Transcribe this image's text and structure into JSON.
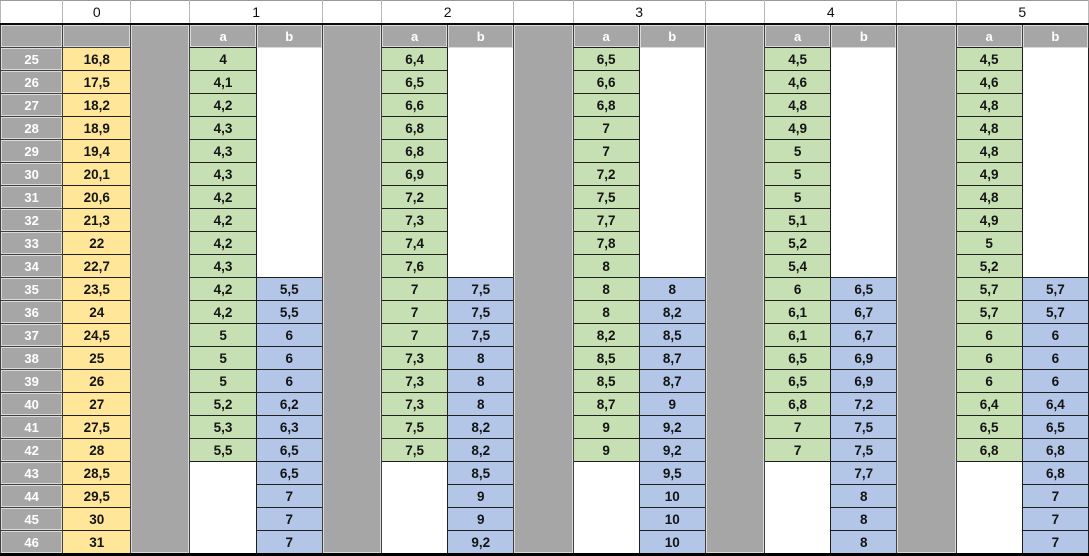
{
  "table": {
    "col0_header": "0",
    "group_labels": [
      "1",
      "2",
      "3",
      "4",
      "5"
    ],
    "sub_headers": [
      "a",
      "b"
    ],
    "row_numbers": [
      "25",
      "26",
      "27",
      "28",
      "29",
      "30",
      "31",
      "32",
      "33",
      "34",
      "35",
      "36",
      "37",
      "38",
      "39",
      "40",
      "41",
      "42",
      "43",
      "44",
      "45",
      "46"
    ],
    "col0": [
      "16,8",
      "17,5",
      "18,2",
      "18,9",
      "19,4",
      "20,1",
      "20,6",
      "21,3",
      "22",
      "22,7",
      "23,5",
      "24",
      "24,5",
      "25",
      "26",
      "27",
      "27,5",
      "28",
      "28,5",
      "29,5",
      "30",
      "31"
    ],
    "groups": [
      {
        "label": "1",
        "a": [
          "4",
          "4,1",
          "4,2",
          "4,3",
          "4,3",
          "4,3",
          "4,2",
          "4,2",
          "4,2",
          "4,3",
          "4,2",
          "4,2",
          "5",
          "5",
          "5",
          "5,2",
          "5,3",
          "5,5",
          "",
          "",
          "",
          ""
        ],
        "b": [
          "",
          "",
          "",
          "",
          "",
          "",
          "",
          "",
          "",
          "",
          "5,5",
          "5,5",
          "6",
          "6",
          "6",
          "6,2",
          "6,3",
          "6,5",
          "6,5",
          "7",
          "7",
          "7"
        ]
      },
      {
        "label": "2",
        "a": [
          "6,4",
          "6,5",
          "6,6",
          "6,8",
          "6,8",
          "6,9",
          "7,2",
          "7,3",
          "7,4",
          "7,6",
          "7",
          "7",
          "7",
          "7,3",
          "7,3",
          "7,3",
          "7,5",
          "7,5",
          "",
          "",
          "",
          ""
        ],
        "b": [
          "",
          "",
          "",
          "",
          "",
          "",
          "",
          "",
          "",
          "",
          "7,5",
          "7,5",
          "7,5",
          "8",
          "8",
          "8",
          "8,2",
          "8,2",
          "8,5",
          "9",
          "9",
          "9,2"
        ]
      },
      {
        "label": "3",
        "a": [
          "6,5",
          "6,6",
          "6,8",
          "7",
          "7",
          "7,2",
          "7,5",
          "7,7",
          "7,8",
          "8",
          "8",
          "8",
          "8,2",
          "8,5",
          "8,5",
          "8,7",
          "9",
          "9",
          "",
          "",
          "",
          ""
        ],
        "b": [
          "",
          "",
          "",
          "",
          "",
          "",
          "",
          "",
          "",
          "",
          "8",
          "8,2",
          "8,5",
          "8,7",
          "8,7",
          "9",
          "9,2",
          "9,2",
          "9,5",
          "10",
          "10",
          "10"
        ]
      },
      {
        "label": "4",
        "a": [
          "4,5",
          "4,6",
          "4,8",
          "4,9",
          "5",
          "5",
          "5",
          "5,1",
          "5,2",
          "5,4",
          "6",
          "6,1",
          "6,1",
          "6,5",
          "6,5",
          "6,8",
          "7",
          "7",
          "",
          "",
          "",
          ""
        ],
        "b": [
          "",
          "",
          "",
          "",
          "",
          "",
          "",
          "",
          "",
          "",
          "6,5",
          "6,7",
          "6,7",
          "6,9",
          "6,9",
          "7,2",
          "7,5",
          "7,5",
          "7,7",
          "8",
          "8",
          "8"
        ]
      },
      {
        "label": "5",
        "a": [
          "4,5",
          "4,6",
          "4,8",
          "4,8",
          "4,8",
          "4,9",
          "4,8",
          "4,9",
          "5",
          "5,2",
          "5,7",
          "5,7",
          "6",
          "6",
          "6",
          "6,4",
          "6,5",
          "6,8",
          "",
          "",
          "",
          ""
        ],
        "b": [
          "",
          "",
          "",
          "",
          "",
          "",
          "",
          "",
          "",
          "",
          "5,7",
          "5,7",
          "6",
          "6",
          "6",
          "6,4",
          "6,5",
          "6,8",
          "6,8",
          "7",
          "7",
          "7"
        ]
      }
    ]
  },
  "colors": {
    "gray": "#a6a6a6",
    "yellow": "#ffe699",
    "green": "#c6e0b4",
    "blue": "#b4c6e7",
    "border": "#1f1f1f",
    "graybrd": "#404040",
    "bevel": "#dadada",
    "topbrd": "#b7b7b7"
  }
}
